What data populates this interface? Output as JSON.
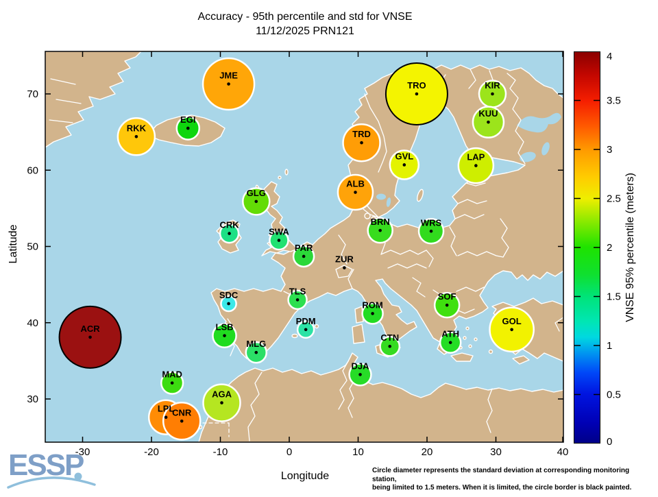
{
  "title": {
    "line1": "Accuracy - 95th percentile and std for VNSE",
    "line2": "11/12/2025 PRN121"
  },
  "axes": {
    "x_label": "Longitude",
    "y_label": "Latitude",
    "x_ticks": [
      -30,
      -20,
      -10,
      0,
      10,
      20,
      30,
      40
    ],
    "y_ticks": [
      30,
      40,
      50,
      60,
      70
    ]
  },
  "colorbar": {
    "label": "VNSE 95% percentile (meters)",
    "min": 0,
    "max": 4,
    "ticks": [
      "0",
      "0.5",
      "1",
      "1.5",
      "2",
      "2.5",
      "3",
      "3.5",
      "4"
    ],
    "tick_values": [
      0,
      0.5,
      1,
      1.5,
      2,
      2.5,
      3,
      3.5,
      4
    ],
    "gradient_stops": [
      [
        0,
        "#000088"
      ],
      [
        5,
        "#0000B4"
      ],
      [
        12.5,
        "#0014E0"
      ],
      [
        18,
        "#0048F8"
      ],
      [
        23,
        "#0096F0"
      ],
      [
        27,
        "#00D8E0"
      ],
      [
        31,
        "#00E6B4"
      ],
      [
        37.5,
        "#00E378"
      ],
      [
        43,
        "#0FE030"
      ],
      [
        50,
        "#1EE300"
      ],
      [
        56,
        "#7FE900"
      ],
      [
        62.5,
        "#EEEE00"
      ],
      [
        68,
        "#FFCC00"
      ],
      [
        75,
        "#FF9A00"
      ],
      [
        81,
        "#FF5A00"
      ],
      [
        87.5,
        "#F51E00"
      ],
      [
        94,
        "#C40700"
      ],
      [
        100,
        "#8B0000"
      ]
    ]
  },
  "footnote": {
    "text": "Circle diameter represents the standard deviation at corresponding monitoring station,\nbeing limited to 1.5 meters. When it is limited, the circle border is black painted."
  },
  "logo": {
    "text": "ESSP"
  },
  "map_colors": {
    "sea": "#A9D6E8",
    "land": "#D2B48C",
    "country_border": "#FFFFFF"
  },
  "chart_data": {
    "type": "scatter",
    "subtype": "geo-bubble-map",
    "title": "Accuracy - 95th percentile and std for VNSE 11/12/2025 PRN121",
    "xlabel": "Longitude",
    "ylabel": "Latitude",
    "xlim": [
      -35,
      40
    ],
    "ylim": [
      24,
      76
    ],
    "color_scale": {
      "label": "VNSE 95% percentile (meters)",
      "range": [
        0,
        4
      ]
    },
    "size_rule": "circle diameter = std (m), limited to 1.5 m; black border when limited",
    "stations": [
      {
        "code": "JME",
        "lon": -8.8,
        "lat": 71.3,
        "vnse_m": 3.05,
        "std_m": 1.25,
        "color": "#FFA608",
        "border": "white"
      },
      {
        "code": "TRO",
        "lon": 18.5,
        "lat": 70.0,
        "vnse_m": 2.5,
        "std_m": 1.5,
        "color": "#F4F400",
        "border": "black"
      },
      {
        "code": "KIR",
        "lon": 29.5,
        "lat": 70.0,
        "vnse_m": 2.25,
        "std_m": 0.65,
        "color": "#9CE41B",
        "border": "white"
      },
      {
        "code": "KUU",
        "lon": 28.9,
        "lat": 66.3,
        "vnse_m": 2.25,
        "std_m": 0.75,
        "color": "#9CE41B",
        "border": "white"
      },
      {
        "code": "EGI",
        "lon": -14.7,
        "lat": 65.5,
        "vnse_m": 1.95,
        "std_m": 0.55,
        "color": "#0ED60E",
        "border": "white"
      },
      {
        "code": "RKK",
        "lon": -22.2,
        "lat": 64.4,
        "vnse_m": 2.75,
        "std_m": 0.9,
        "color": "#FFC70A",
        "border": "white"
      },
      {
        "code": "TRD",
        "lon": 10.5,
        "lat": 63.6,
        "vnse_m": 3.0,
        "std_m": 0.9,
        "color": "#FF9D06",
        "border": "white"
      },
      {
        "code": "GVL",
        "lon": 16.7,
        "lat": 60.7,
        "vnse_m": 2.4,
        "std_m": 0.7,
        "color": "#E3F300",
        "border": "white"
      },
      {
        "code": "LAP",
        "lon": 27.1,
        "lat": 60.6,
        "vnse_m": 2.35,
        "std_m": 0.85,
        "color": "#CEEE00",
        "border": "white"
      },
      {
        "code": "ALB",
        "lon": 9.6,
        "lat": 57.1,
        "vnse_m": 3.0,
        "std_m": 0.85,
        "color": "#FFA309",
        "border": "white"
      },
      {
        "code": "GLG",
        "lon": -4.8,
        "lat": 55.9,
        "vnse_m": 2.1,
        "std_m": 0.65,
        "color": "#63DC06",
        "border": "white"
      },
      {
        "code": "BRN",
        "lon": 13.2,
        "lat": 52.1,
        "vnse_m": 1.95,
        "std_m": 0.6,
        "color": "#38DC1E",
        "border": "white"
      },
      {
        "code": "WRS",
        "lon": 20.6,
        "lat": 52.0,
        "vnse_m": 1.95,
        "std_m": 0.6,
        "color": "#31DB1D",
        "border": "white"
      },
      {
        "code": "CRK",
        "lon": -8.7,
        "lat": 51.7,
        "vnse_m": 1.65,
        "std_m": 0.45,
        "color": "#1EE085",
        "border": "white"
      },
      {
        "code": "SWA",
        "lon": -1.5,
        "lat": 50.8,
        "vnse_m": 1.65,
        "std_m": 0.45,
        "color": "#21E171",
        "border": "white"
      },
      {
        "code": "PAR",
        "lon": 2.1,
        "lat": 48.7,
        "vnse_m": 1.9,
        "std_m": 0.5,
        "color": "#2BD839",
        "border": "white"
      },
      {
        "code": "ZUR",
        "lon": 8.0,
        "lat": 47.2,
        "vnse_m": null,
        "std_m": null,
        "color": null,
        "border": null
      },
      {
        "code": "TLS",
        "lon": 1.2,
        "lat": 43.0,
        "vnse_m": 1.9,
        "std_m": 0.45,
        "color": "#2CDF4F",
        "border": "white"
      },
      {
        "code": "SDC",
        "lon": -8.8,
        "lat": 42.5,
        "vnse_m": 1.1,
        "std_m": 0.37,
        "color": "#3BE8E8",
        "border": "white"
      },
      {
        "code": "SOF",
        "lon": 22.9,
        "lat": 42.3,
        "vnse_m": 2.05,
        "std_m": 0.6,
        "color": "#3FE00F",
        "border": "white"
      },
      {
        "code": "ROM",
        "lon": 12.1,
        "lat": 41.2,
        "vnse_m": 1.95,
        "std_m": 0.5,
        "color": "#23DC23",
        "border": "white"
      },
      {
        "code": "GOL",
        "lon": 32.3,
        "lat": 39.1,
        "vnse_m": 2.5,
        "std_m": 1.07,
        "color": "#F2F200",
        "border": "white"
      },
      {
        "code": "PDM",
        "lon": 2.4,
        "lat": 39.1,
        "vnse_m": 1.55,
        "std_m": 0.4,
        "color": "#2CE2A5",
        "border": "white"
      },
      {
        "code": "LSB",
        "lon": -9.4,
        "lat": 38.3,
        "vnse_m": 1.95,
        "std_m": 0.57,
        "color": "#20DC20",
        "border": "white"
      },
      {
        "code": "ACR",
        "lon": -28.9,
        "lat": 38.1,
        "vnse_m": 3.9,
        "std_m": 1.5,
        "color": "#9B1111",
        "border": "black"
      },
      {
        "code": "ATH",
        "lon": 23.4,
        "lat": 37.4,
        "vnse_m": 1.95,
        "std_m": 0.5,
        "color": "#24DD24",
        "border": "white"
      },
      {
        "code": "CTN",
        "lon": 14.6,
        "lat": 36.9,
        "vnse_m": 1.95,
        "std_m": 0.47,
        "color": "#35DB21",
        "border": "white"
      },
      {
        "code": "MLG",
        "lon": -4.8,
        "lat": 36.1,
        "vnse_m": 1.7,
        "std_m": 0.5,
        "color": "#2BDF67",
        "border": "white"
      },
      {
        "code": "DJA",
        "lon": 10.3,
        "lat": 33.2,
        "vnse_m": 1.95,
        "std_m": 0.53,
        "color": "#27DC27",
        "border": "white"
      },
      {
        "code": "MAD",
        "lon": -17.0,
        "lat": 32.1,
        "vnse_m": 2.0,
        "std_m": 0.53,
        "color": "#3CDC10",
        "border": "white"
      },
      {
        "code": "AGA",
        "lon": -9.8,
        "lat": 29.5,
        "vnse_m": 2.2,
        "std_m": 0.9,
        "color": "#B5E621",
        "border": "white"
      },
      {
        "code": "LPL",
        "lon": -17.9,
        "lat": 27.6,
        "vnse_m": 3.05,
        "std_m": 0.83,
        "color": "#FF8C05",
        "border": "white"
      },
      {
        "code": "CNR",
        "lon": -15.6,
        "lat": 27.1,
        "vnse_m": 3.1,
        "std_m": 0.9,
        "color": "#FF7E03",
        "border": "white"
      }
    ]
  }
}
